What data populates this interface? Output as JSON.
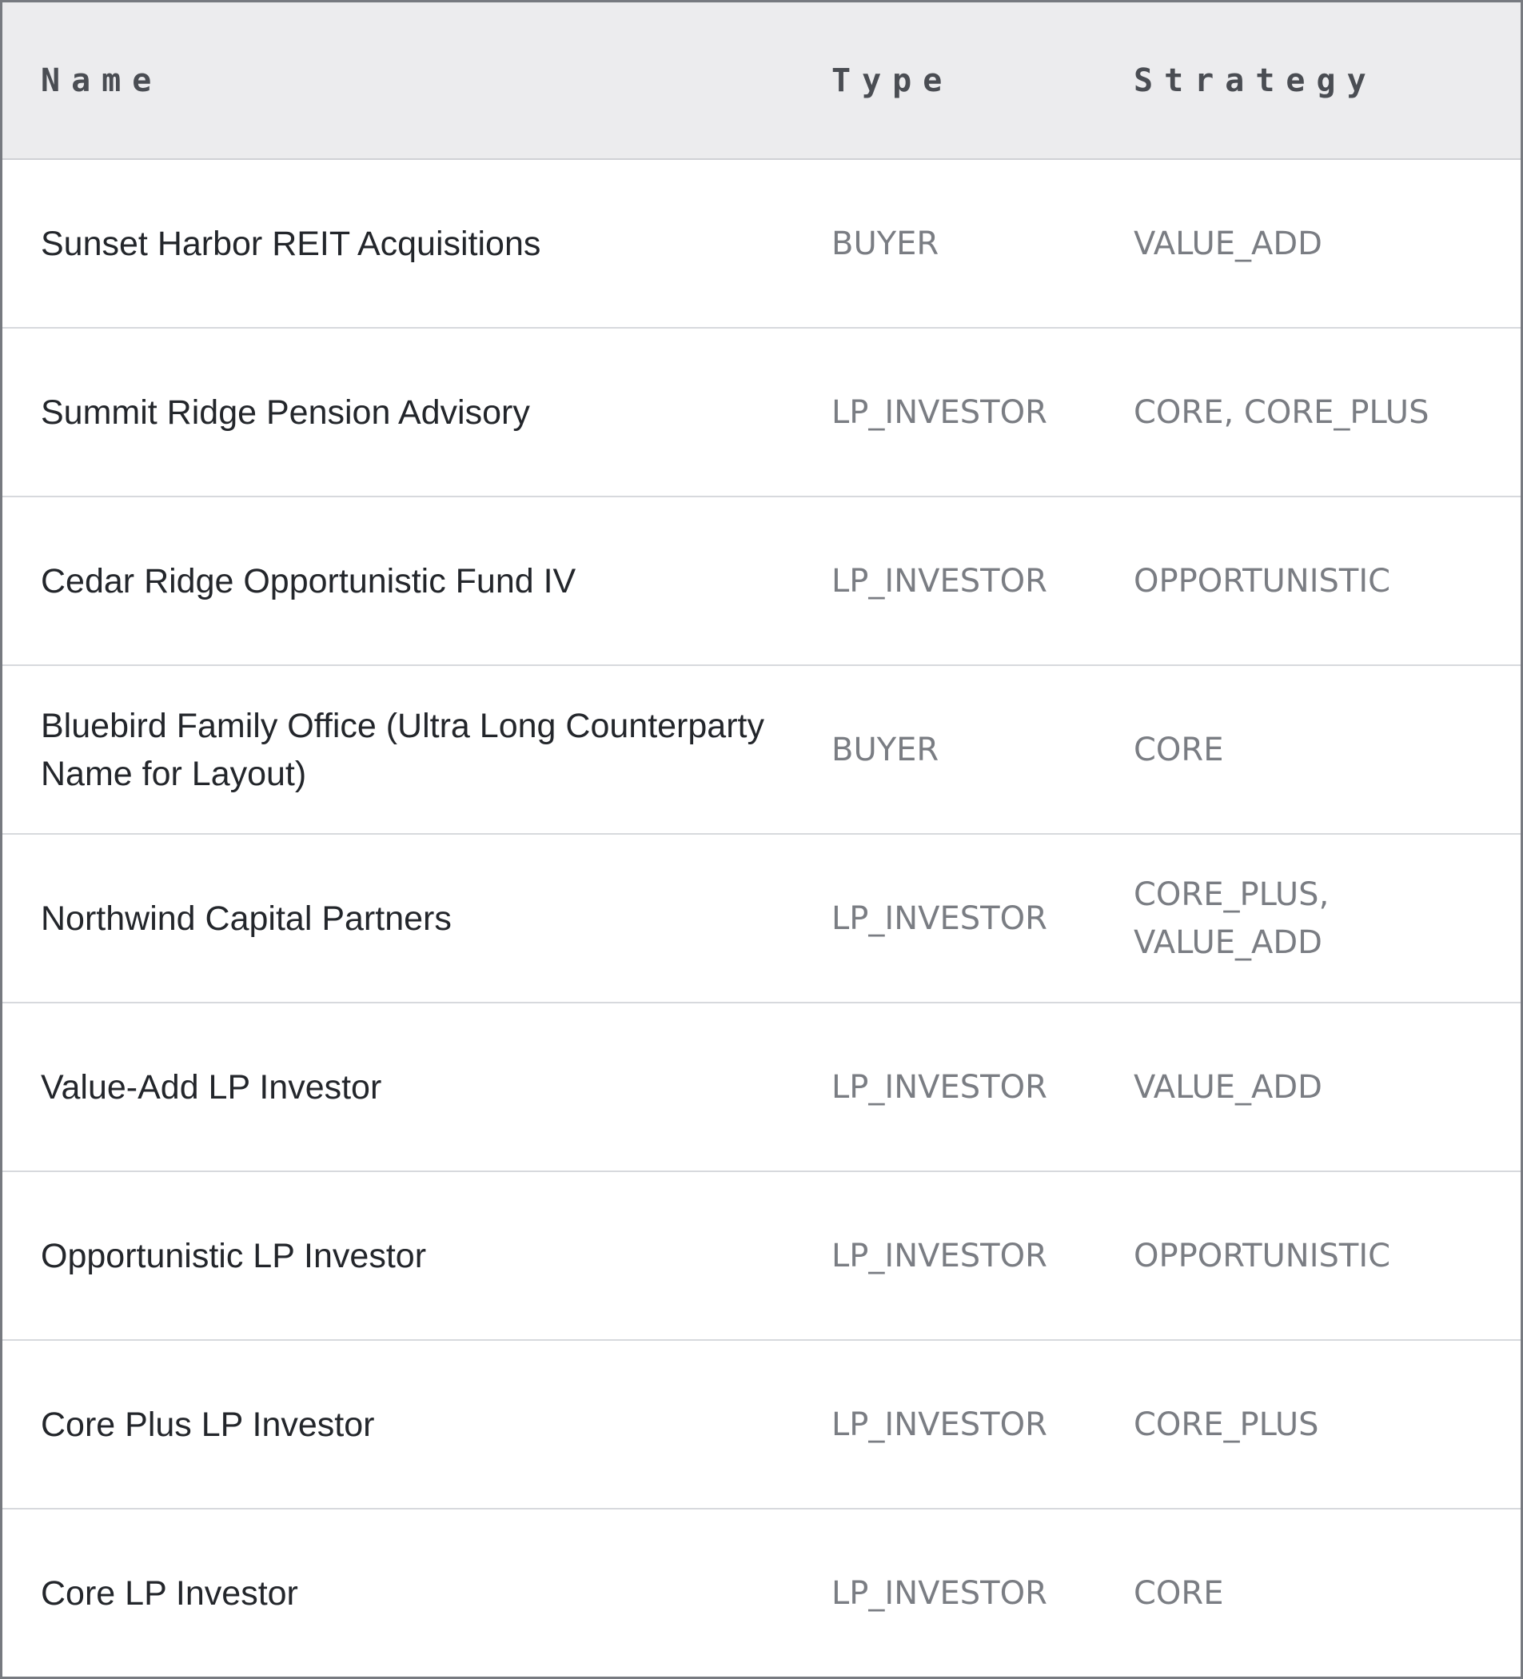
{
  "table": {
    "headers": {
      "name": "Name",
      "type": "Type",
      "strategy": "Strategy"
    },
    "rows": [
      {
        "name": "Sunset Harbor REIT Acquisitions",
        "type": "BUYER",
        "strategy": "VALUE_ADD"
      },
      {
        "name": "Summit Ridge Pension Advisory",
        "type": "LP_INVESTOR",
        "strategy": "CORE, CORE_PLUS"
      },
      {
        "name": "Cedar Ridge Opportunistic Fund IV",
        "type": "LP_INVESTOR",
        "strategy": "OPPORTUNISTIC"
      },
      {
        "name": "Bluebird Family Office (Ultra Long Counterparty Name for Layout)",
        "type": "BUYER",
        "strategy": "CORE"
      },
      {
        "name": "Northwind Capital Partners",
        "type": "LP_INVESTOR",
        "strategy": "CORE_PLUS, VALUE_ADD"
      },
      {
        "name": "Value-Add LP Investor",
        "type": "LP_INVESTOR",
        "strategy": "VALUE_ADD"
      },
      {
        "name": "Opportunistic LP Investor",
        "type": "LP_INVESTOR",
        "strategy": "OPPORTUNISTIC"
      },
      {
        "name": "Core Plus LP Investor",
        "type": "LP_INVESTOR",
        "strategy": "CORE_PLUS"
      },
      {
        "name": "Core LP Investor",
        "type": "LP_INVESTOR",
        "strategy": "CORE"
      }
    ]
  }
}
